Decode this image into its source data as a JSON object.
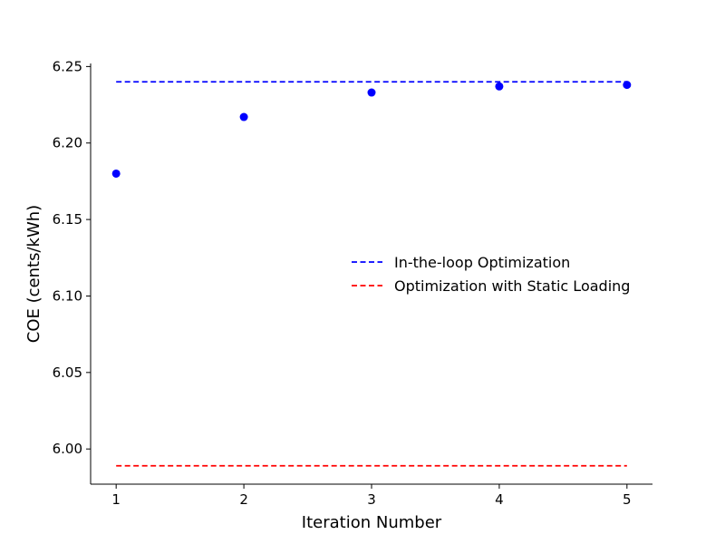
{
  "chart_data": {
    "type": "scatter",
    "title": "",
    "xlabel": "Iteration Number",
    "ylabel": "COE (cents/kWh)",
    "xlim": [
      0.8,
      5.2
    ],
    "ylim": [
      5.977,
      6.252
    ],
    "x_ticks": [
      1,
      2,
      3,
      4,
      5
    ],
    "x_tick_labels": [
      "1",
      "2",
      "3",
      "4",
      "5"
    ],
    "y_ticks": [
      6.0,
      6.05,
      6.1,
      6.15,
      6.2,
      6.25
    ],
    "y_tick_labels": [
      "6.00",
      "6.05",
      "6.10",
      "6.15",
      "6.20",
      "6.25"
    ],
    "grid": false,
    "legend_position": "center-right",
    "points": {
      "color": "#0000ff",
      "x": [
        1,
        2,
        3,
        4,
        5
      ],
      "y": [
        6.18,
        6.217,
        6.233,
        6.237,
        6.238
      ]
    },
    "reference_lines": [
      {
        "name": "In-the-loop Optimization",
        "y": 6.24,
        "x_start": 1,
        "x_end": 5,
        "color": "#0000ff",
        "style": "dashed"
      },
      {
        "name": "Optimization with Static Loading",
        "y": 5.989,
        "x_start": 1,
        "x_end": 5,
        "color": "#ff0000",
        "style": "dashed"
      }
    ]
  }
}
